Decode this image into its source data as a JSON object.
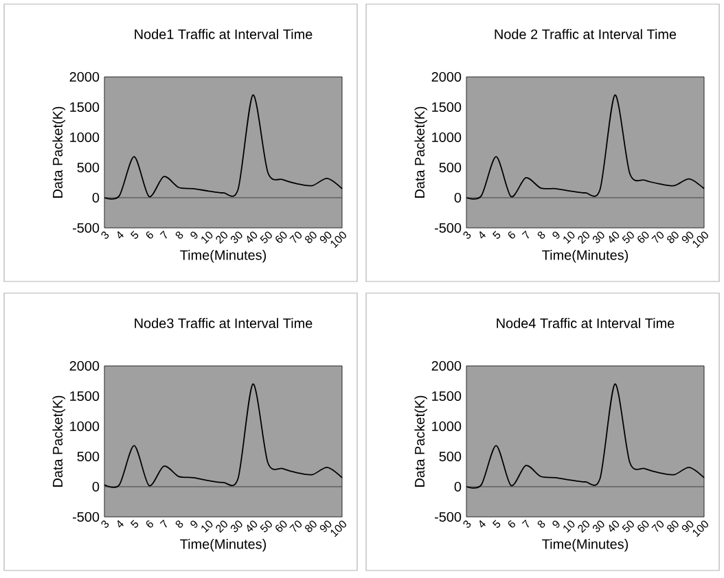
{
  "chart_data": [
    {
      "type": "line",
      "title": "Node1 Traffic at Interval Time",
      "xlabel": "Time(Minutes)",
      "ylabel": "Data Packet(K)",
      "categories": [
        "3",
        "4",
        "5",
        "6",
        "7",
        "8",
        "9",
        "10",
        "20",
        "30",
        "40",
        "50",
        "60",
        "70",
        "80",
        "90",
        "100"
      ],
      "values": [
        0,
        30,
        680,
        20,
        350,
        170,
        150,
        110,
        80,
        140,
        1700,
        420,
        300,
        230,
        200,
        320,
        150
      ],
      "color": "#000000",
      "ylim": [
        -500,
        2000
      ],
      "yticks": [
        -500,
        0,
        500,
        1000,
        1500,
        2000
      ],
      "ref_lines": [
        {
          "axis": "y",
          "value": 0,
          "color": "#404040"
        }
      ],
      "grid": false,
      "legend": false,
      "marker": "none",
      "line_style": "solid"
    },
    {
      "type": "line",
      "title": "Node 2 Traffic at Interval Time",
      "xlabel": "Time(Minutes)",
      "ylabel": "Data Packet(K)",
      "categories": [
        "3",
        "4",
        "5",
        "6",
        "7",
        "8",
        "9",
        "10",
        "20",
        "30",
        "40",
        "50",
        "60",
        "70",
        "80",
        "90",
        "100"
      ],
      "values": [
        0,
        30,
        680,
        20,
        330,
        160,
        150,
        110,
        80,
        140,
        1700,
        400,
        290,
        230,
        200,
        310,
        150
      ],
      "color": "#000000",
      "ylim": [
        -500,
        2000
      ],
      "yticks": [
        -500,
        0,
        500,
        1000,
        1500,
        2000
      ],
      "ref_lines": [
        {
          "axis": "y",
          "value": 0,
          "color": "#404040"
        }
      ],
      "grid": false,
      "legend": false,
      "marker": "none",
      "line_style": "solid"
    },
    {
      "type": "line",
      "title": "Node3 Traffic at Interval Time",
      "xlabel": "Time(Minutes)",
      "ylabel": "Data Packet(K)",
      "categories": [
        "3",
        "4",
        "5",
        "6",
        "7",
        "8",
        "9",
        "10",
        "20",
        "30",
        "40",
        "50",
        "60",
        "70",
        "80",
        "90",
        "100"
      ],
      "values": [
        30,
        30,
        680,
        20,
        340,
        170,
        150,
        100,
        70,
        140,
        1700,
        400,
        300,
        230,
        200,
        320,
        150
      ],
      "color": "#000000",
      "ylim": [
        -500,
        2000
      ],
      "yticks": [
        -500,
        0,
        500,
        1000,
        1500,
        2000
      ],
      "ref_lines": [
        {
          "axis": "y",
          "value": 0,
          "color": "#404040"
        }
      ],
      "grid": false,
      "legend": false,
      "marker": "none",
      "line_style": "solid"
    },
    {
      "type": "line",
      "title": "Node4 Traffic at Interval Time",
      "xlabel": "Time(Minutes)",
      "ylabel": "Data Packet(K)",
      "categories": [
        "3",
        "4",
        "5",
        "6",
        "7",
        "8",
        "9",
        "10",
        "20",
        "30",
        "40",
        "50",
        "60",
        "70",
        "80",
        "90",
        "100"
      ],
      "values": [
        0,
        30,
        680,
        20,
        350,
        170,
        150,
        110,
        80,
        140,
        1700,
        400,
        300,
        230,
        200,
        320,
        150
      ],
      "color": "#000000",
      "ylim": [
        -500,
        2000
      ],
      "yticks": [
        -500,
        0,
        500,
        1000,
        1500,
        2000
      ],
      "ref_lines": [
        {
          "axis": "y",
          "value": 0,
          "color": "#404040"
        }
      ],
      "grid": false,
      "legend": false,
      "marker": "none",
      "line_style": "solid"
    }
  ]
}
